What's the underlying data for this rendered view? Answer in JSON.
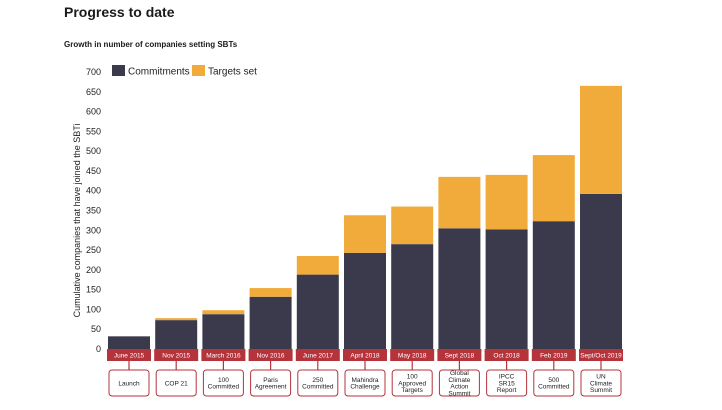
{
  "page": {
    "title": "Progress to date",
    "subtitle": "Growth in number of companies setting SBTs"
  },
  "chart_data": {
    "type": "bar",
    "stacked": true,
    "ylabel": "Cumulative companies that have joined the SBTi",
    "ylim": [
      0,
      700
    ],
    "yticks": [
      0,
      50,
      100,
      150,
      200,
      250,
      300,
      350,
      400,
      450,
      500,
      550,
      600,
      650,
      700
    ],
    "legend_position": "top-left",
    "categories": [
      "June 2015",
      "Nov 2015",
      "March 2016",
      "Nov 2016",
      "June 2017",
      "April 2018",
      "May 2018",
      "Sept 2018",
      "Oct 2018",
      "Feb 2019",
      "Sept/Oct 2019"
    ],
    "events": [
      [
        "Launch"
      ],
      [
        "COP 21"
      ],
      [
        "100",
        "Committed"
      ],
      [
        "Paris",
        "Agreement"
      ],
      [
        "250",
        "Committed"
      ],
      [
        "Mahindra",
        "Challenge"
      ],
      [
        "100",
        "Approved",
        "Targets"
      ],
      [
        "Global",
        "Climate",
        "Action",
        "Summit"
      ],
      [
        "IPCC",
        "SR15",
        "Report"
      ],
      [
        "500",
        "Committed"
      ],
      [
        "UN",
        "Climate",
        "Summit"
      ]
    ],
    "series": [
      {
        "name": "Commitments",
        "color": "#3b3a4c",
        "values": [
          32,
          73,
          88,
          132,
          188,
          243,
          265,
          305,
          302,
          323,
          392
        ]
      },
      {
        "name": "Targets set",
        "color": "#f1ab3b",
        "values": [
          0,
          5,
          10,
          22,
          47,
          95,
          95,
          130,
          138,
          167,
          273
        ]
      }
    ],
    "date_bar_color": "#b5333b",
    "connector_color": "#b5333b"
  }
}
